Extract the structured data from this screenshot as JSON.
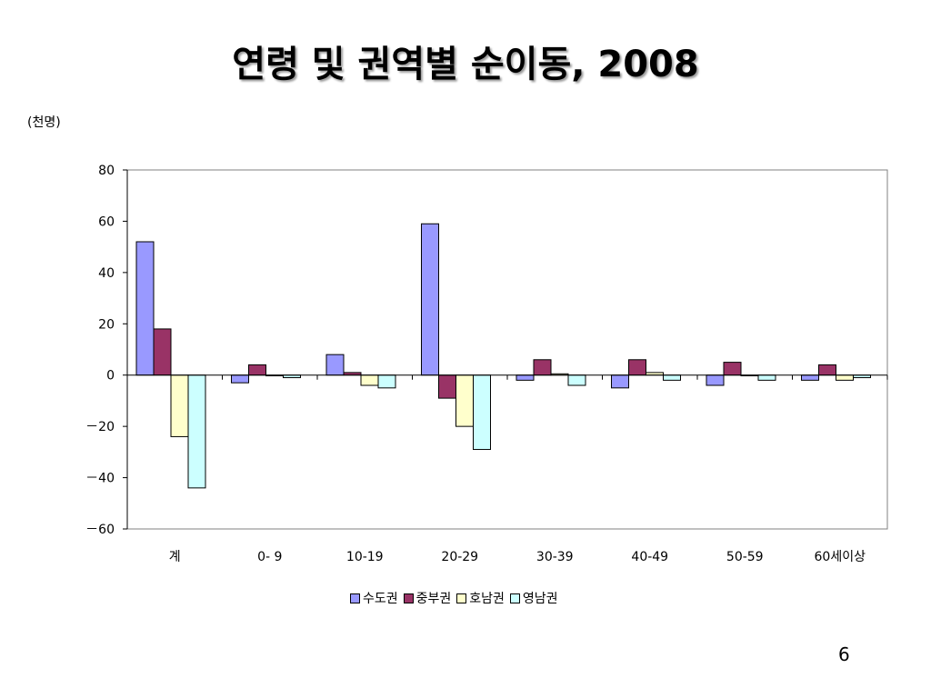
{
  "slide": {
    "title": "연령 및 권역별 순이동, 2008",
    "unit_label": "(천명)",
    "page_number": "6"
  },
  "chart_data": {
    "type": "bar",
    "categories": [
      "계",
      "0- 9",
      "10-19",
      "20-29",
      "30-39",
      "40-49",
      "50-59",
      "60세이상"
    ],
    "series": [
      {
        "name": "수도권",
        "color": "#9999ff",
        "values": [
          52,
          -3,
          8,
          59,
          -2,
          -5,
          -4,
          -2
        ]
      },
      {
        "name": "중부권",
        "color": "#993366",
        "values": [
          18,
          4,
          1,
          -9,
          6,
          6,
          5,
          4
        ]
      },
      {
        "name": "호남권",
        "color": "#ffffcc",
        "values": [
          -24,
          0,
          -4,
          -20,
          0.5,
          1,
          0,
          -2
        ]
      },
      {
        "name": "영남권",
        "color": "#ccffff",
        "values": [
          -44,
          -1,
          -5,
          -29,
          -4,
          -2,
          -2,
          -1
        ]
      }
    ],
    "ylim": [
      -60,
      80
    ],
    "yticks": [
      80,
      60,
      40,
      20,
      0,
      -20,
      -40,
      -60
    ],
    "ytick_labels": [
      "80",
      "60",
      "40",
      "20",
      "0",
      "－20",
      "－40",
      "－60"
    ],
    "grid": false,
    "legend_position": "bottom"
  }
}
